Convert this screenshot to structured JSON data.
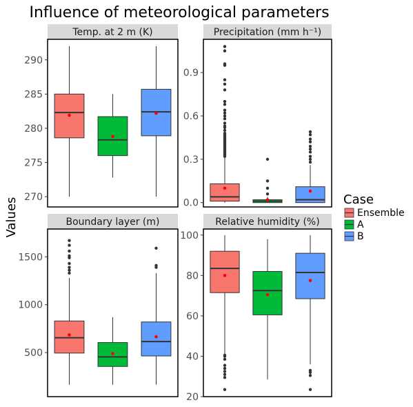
{
  "title": "Influence of meteorological parameters",
  "ylabel": "Values",
  "legend": {
    "title": "Case",
    "items": [
      {
        "label": "Ensemble",
        "color": "#F8766D"
      },
      {
        "label": "A",
        "color": "#00BA38"
      },
      {
        "label": "B",
        "color": "#619CFF"
      }
    ]
  },
  "chart_data": [
    {
      "type": "boxplot",
      "title": "Temp. at 2 m (K)",
      "ylim": [
        268.5,
        293
      ],
      "yticks": [
        270,
        275,
        280,
        285,
        290
      ],
      "tick_labels": [
        "270",
        "275",
        "280",
        "285",
        "290"
      ],
      "boxes": [
        {
          "name": "Ensemble",
          "q1": 278.6,
          "median": 282.3,
          "q3": 285.0,
          "whisker_low": 270.0,
          "whisker_high": 292.0,
          "mean": 281.9,
          "outliers": []
        },
        {
          "name": "A",
          "q1": 276.0,
          "median": 278.3,
          "q3": 281.7,
          "whisker_low": 272.8,
          "whisker_high": 285.0,
          "mean": 278.8,
          "outliers": []
        },
        {
          "name": "B",
          "q1": 278.9,
          "median": 282.4,
          "q3": 285.7,
          "whisker_low": 270.0,
          "whisker_high": 292.0,
          "mean": 282.2,
          "outliers": []
        }
      ]
    },
    {
      "type": "boxplot",
      "title": "Precipitation (mm h⁻¹)",
      "ylim": [
        -0.03,
        1.13
      ],
      "yticks": [
        0.0,
        0.3,
        0.6,
        0.9
      ],
      "tick_labels": [
        "0.0",
        "0.3",
        "0.6",
        "0.9"
      ],
      "boxes": [
        {
          "name": "Ensemble",
          "q1": 0.01,
          "median": 0.04,
          "q3": 0.13,
          "whisker_low": 0.0,
          "whisker_high": 0.31,
          "mean": 0.1,
          "outliers": [
            0.32,
            0.33,
            0.34,
            0.35,
            0.36,
            0.37,
            0.38,
            0.39,
            0.4,
            0.41,
            0.42,
            0.43,
            0.44,
            0.45,
            0.46,
            0.47,
            0.48,
            0.5,
            0.52,
            0.53,
            0.55,
            0.58,
            0.6,
            0.62,
            0.64,
            0.68,
            0.7,
            0.78,
            0.82,
            0.85,
            0.95,
            0.96,
            1.05,
            1.08
          ]
        },
        {
          "name": "A",
          "q1": 0.0,
          "median": 0.01,
          "q3": 0.02,
          "whisker_low": 0.0,
          "whisker_high": 0.04,
          "mean": 0.02,
          "outliers": [
            0.06,
            0.1,
            0.15,
            0.3
          ]
        },
        {
          "name": "B",
          "q1": 0.0,
          "median": 0.02,
          "q3": 0.11,
          "whisker_low": 0.0,
          "whisker_high": 0.26,
          "mean": 0.08,
          "outliers": [
            0.28,
            0.3,
            0.32,
            0.35,
            0.37,
            0.39,
            0.42,
            0.44,
            0.47,
            0.49
          ]
        }
      ]
    },
    {
      "type": "boxplot",
      "title": "Boundary layer (m)",
      "ylim": [
        40,
        1790
      ],
      "yticks": [
        500,
        1000,
        1500
      ],
      "tick_labels": [
        "500",
        "1000",
        "1500"
      ],
      "boxes": [
        {
          "name": "Ensemble",
          "q1": 495,
          "median": 655,
          "q3": 830,
          "whisker_low": 165,
          "whisker_high": 1280,
          "mean": 685,
          "outliers": [
            1330,
            1360,
            1390,
            1430,
            1490,
            1510,
            1560,
            1620,
            1670
          ]
        },
        {
          "name": "A",
          "q1": 355,
          "median": 455,
          "q3": 605,
          "whisker_low": 165,
          "whisker_high": 870,
          "mean": 490,
          "outliers": []
        },
        {
          "name": "B",
          "q1": 465,
          "median": 615,
          "q3": 820,
          "whisker_low": 165,
          "whisker_high": 1330,
          "mean": 665,
          "outliers": [
            1390,
            1410,
            1590
          ]
        }
      ]
    },
    {
      "type": "boxplot",
      "title": "Relative humidity (%)",
      "ylim": [
        20,
        103
      ],
      "yticks": [
        20,
        40,
        60,
        80,
        100
      ],
      "tick_labels": [
        "20",
        "40",
        "60",
        "80",
        "100"
      ],
      "boxes": [
        {
          "name": "Ensemble",
          "q1": 71.5,
          "median": 83.5,
          "q3": 92.0,
          "whisker_low": 41.0,
          "whisker_high": 100.0,
          "mean": 80.0,
          "outliers": [
            23.5,
            29.5,
            31.0,
            32.5,
            34.0,
            35.5,
            38.5,
            40.0,
            40.5
          ]
        },
        {
          "name": "A",
          "q1": 60.5,
          "median": 72.5,
          "q3": 82.0,
          "whisker_low": 28.5,
          "whisker_high": 98.0,
          "mean": 70.5,
          "outliers": []
        },
        {
          "name": "B",
          "q1": 68.5,
          "median": 81.5,
          "q3": 91.0,
          "whisker_low": 36.0,
          "whisker_high": 100.0,
          "mean": 77.5,
          "outliers": [
            23.5,
            30.5,
            32.0,
            33.0
          ]
        }
      ]
    }
  ]
}
